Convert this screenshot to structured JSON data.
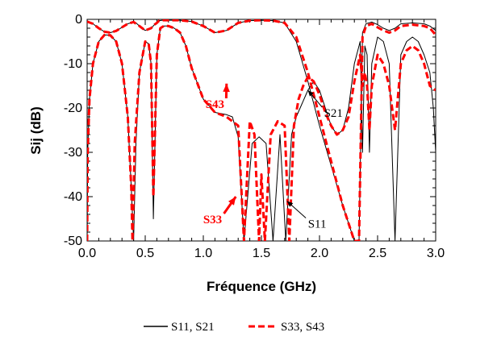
{
  "chart_data": {
    "type": "line",
    "title": "",
    "xlabel": "Fréquence (GHz)",
    "ylabel": "Sij (dB)",
    "xlim": [
      0,
      3
    ],
    "ylim": [
      -50,
      0
    ],
    "xticks": [
      "0.0",
      "0.5",
      "1.0",
      "1.5",
      "2.0",
      "2.5",
      "3.0"
    ],
    "yticks": [
      "0",
      "-10",
      "-20",
      "-30",
      "-40",
      "-50"
    ],
    "grid": false,
    "legend_position": "bottom",
    "legend": [
      {
        "label": "S11, S21",
        "color": "#000000",
        "dash": "solid"
      },
      {
        "label": "S33, S43",
        "color": "#ff0000",
        "dash": "dashed"
      }
    ],
    "series": [
      {
        "name": "S21",
        "color": "#000000",
        "style": "solid",
        "x": [
          0.0,
          0.05,
          0.1,
          0.15,
          0.2,
          0.25,
          0.3,
          0.35,
          0.4,
          0.42,
          0.45,
          0.5,
          0.55,
          0.58,
          0.6,
          0.62,
          0.65,
          0.7,
          0.8,
          0.9,
          1.0,
          1.1,
          1.2,
          1.3,
          1.4,
          1.5,
          1.6,
          1.7,
          1.8,
          1.9,
          2.0,
          2.1,
          2.2,
          2.3,
          2.34,
          2.37,
          2.4,
          2.45,
          2.5,
          2.55,
          2.6,
          2.65,
          2.7,
          2.8,
          2.9,
          2.95,
          3.0
        ],
        "y": [
          -0.5,
          -1.0,
          -2.0,
          -2.8,
          -3.0,
          -2.6,
          -1.8,
          -1.0,
          -0.6,
          -0.8,
          -1.5,
          -2.5,
          -2.0,
          -1.2,
          -0.8,
          -0.3,
          -0.2,
          -0.2,
          -0.2,
          -0.5,
          -1.5,
          -3.0,
          -2.5,
          -0.8,
          -0.3,
          -0.2,
          -0.3,
          -0.8,
          -5.0,
          -14.0,
          -24.0,
          -33.0,
          -42.0,
          -50.0,
          -50.0,
          -3.0,
          -1.0,
          -0.6,
          -1.2,
          -2.0,
          -2.5,
          -2.0,
          -1.0,
          -0.8,
          -1.0,
          -1.5,
          -2.5
        ]
      },
      {
        "name": "S11",
        "color": "#000000",
        "style": "solid",
        "x": [
          0.0,
          0.005,
          0.02,
          0.05,
          0.1,
          0.15,
          0.2,
          0.25,
          0.3,
          0.35,
          0.38,
          0.4,
          0.42,
          0.45,
          0.5,
          0.53,
          0.55,
          0.57,
          0.6,
          0.63,
          0.66,
          0.7,
          0.75,
          0.8,
          0.85,
          0.9,
          1.0,
          1.1,
          1.2,
          1.25,
          1.3,
          1.35,
          1.42,
          1.48,
          1.54,
          1.6,
          1.66,
          1.71,
          1.76,
          1.8,
          1.85,
          1.9,
          1.95,
          2.0,
          2.05,
          2.1,
          2.15,
          2.2,
          2.25,
          2.3,
          2.35,
          2.37,
          2.39,
          2.41,
          2.43,
          2.45,
          2.5,
          2.55,
          2.6,
          2.65,
          2.7,
          2.75,
          2.8,
          2.85,
          2.9,
          2.95,
          2.98,
          3.0
        ],
        "y": [
          -50,
          -30,
          -18,
          -10,
          -5,
          -3.5,
          -3.6,
          -5,
          -10,
          -22,
          -38,
          -50,
          -28,
          -12,
          -5,
          -5.5,
          -10,
          -45,
          -8,
          -2,
          -1.5,
          -1.5,
          -2.0,
          -3.0,
          -6.0,
          -11.0,
          -18.0,
          -21.0,
          -21.5,
          -22.0,
          -26.5,
          -50.0,
          -28.0,
          -26.5,
          -28.0,
          -50.0,
          -26.0,
          -50.0,
          -26.0,
          -22.0,
          -19.0,
          -16.0,
          -14.0,
          -16.0,
          -20.0,
          -24.0,
          -26.0,
          -25.0,
          -20.0,
          -10.0,
          -5.0,
          -30.0,
          -6.0,
          -8.0,
          -30.0,
          -10.0,
          -4.0,
          -5.0,
          -10.0,
          -50.0,
          -8.0,
          -5.0,
          -4.0,
          -5.0,
          -8.0,
          -12.0,
          -20.0,
          -30.0
        ]
      },
      {
        "name": "S43",
        "color": "#ff0000",
        "style": "dashed",
        "x": [
          0.0,
          0.05,
          0.1,
          0.15,
          0.2,
          0.25,
          0.3,
          0.35,
          0.4,
          0.45,
          0.5,
          0.55,
          0.58,
          0.6,
          0.62,
          0.65,
          0.7,
          0.8,
          0.9,
          1.0,
          1.1,
          1.2,
          1.3,
          1.4,
          1.5,
          1.6,
          1.7,
          1.8,
          1.9,
          2.0,
          2.1,
          2.2,
          2.3,
          2.34,
          2.37,
          2.4,
          2.45,
          2.5,
          2.55,
          2.6,
          2.65,
          2.7,
          2.8,
          2.9,
          2.95,
          3.0
        ],
        "y": [
          -0.5,
          -1.0,
          -2.0,
          -2.8,
          -3.0,
          -2.6,
          -1.8,
          -1.0,
          -0.6,
          -1.5,
          -2.5,
          -2.0,
          -1.2,
          -0.8,
          -0.3,
          -0.2,
          -0.2,
          -0.2,
          -0.5,
          -1.5,
          -3.0,
          -2.5,
          -0.8,
          -0.3,
          -0.2,
          -0.3,
          -0.8,
          -4.0,
          -12.0,
          -22.0,
          -32.0,
          -42.0,
          -50.0,
          -50.0,
          -4.0,
          -1.5,
          -1.0,
          -1.8,
          -2.5,
          -3.0,
          -2.5,
          -1.5,
          -1.2,
          -1.5,
          -2.0,
          -3.5
        ]
      },
      {
        "name": "S33",
        "color": "#ff0000",
        "style": "dashed",
        "x": [
          0.0,
          0.005,
          0.02,
          0.05,
          0.1,
          0.15,
          0.2,
          0.25,
          0.3,
          0.35,
          0.38,
          0.39,
          0.41,
          0.45,
          0.5,
          0.53,
          0.55,
          0.57,
          0.6,
          0.63,
          0.66,
          0.7,
          0.75,
          0.8,
          0.85,
          0.9,
          1.0,
          1.1,
          1.2,
          1.25,
          1.3,
          1.35,
          1.4,
          1.44,
          1.48,
          1.5,
          1.53,
          1.58,
          1.64,
          1.7,
          1.74,
          1.78,
          1.82,
          1.86,
          1.9,
          1.95,
          2.0,
          2.05,
          2.1,
          2.15,
          2.2,
          2.25,
          2.3,
          2.35,
          2.37,
          2.39,
          2.41,
          2.43,
          2.45,
          2.5,
          2.55,
          2.6,
          2.65,
          2.7,
          2.75,
          2.8,
          2.85,
          2.9,
          2.95,
          3.0
        ],
        "y": [
          -50,
          -30,
          -18,
          -10,
          -5,
          -3.5,
          -3.6,
          -5,
          -10,
          -22,
          -38,
          -50,
          -28,
          -12,
          -5,
          -5.5,
          -10,
          -40,
          -8,
          -2,
          -1.5,
          -1.5,
          -2.0,
          -3.0,
          -6.0,
          -11.0,
          -18.0,
          -21.0,
          -22.0,
          -23.0,
          -24.0,
          -50.0,
          -23.0,
          -26.0,
          -50.0,
          -35.0,
          -50.0,
          -26.0,
          -23.0,
          -24.0,
          -50.0,
          -24.0,
          -18.0,
          -15.0,
          -13.0,
          -14.0,
          -17.0,
          -21.0,
          -24.0,
          -26.0,
          -25.0,
          -22.0,
          -14.0,
          -8.0,
          -15.0,
          -12.0,
          -15.0,
          -25.0,
          -15.0,
          -8.0,
          -10.0,
          -15.0,
          -25.0,
          -10.0,
          -7.0,
          -6.0,
          -7.0,
          -10.0,
          -15.0,
          -16.0
        ]
      }
    ],
    "annotations": [
      {
        "text": "S43",
        "color": "#ff0000",
        "x": 1.1,
        "y": -20.0,
        "bold": true
      },
      {
        "text": "S21",
        "color": "#000000",
        "x": 2.12,
        "y": -22.0,
        "bold": false
      },
      {
        "text": "S33",
        "color": "#ff0000",
        "x": 1.08,
        "y": -46.0,
        "bold": true
      },
      {
        "text": "S11",
        "color": "#000000",
        "x": 1.98,
        "y": -47.0,
        "bold": false
      }
    ]
  }
}
